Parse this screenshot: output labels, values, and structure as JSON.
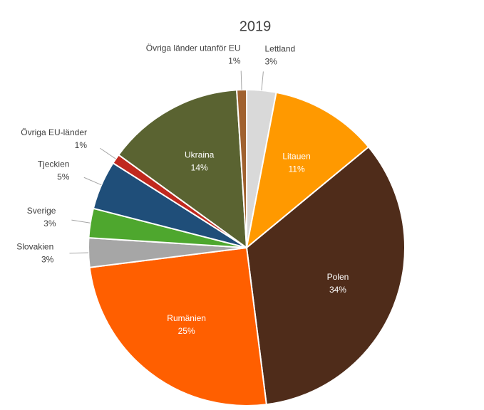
{
  "chart_data": {
    "type": "pie",
    "title": "2019",
    "categories": [
      "Lettland",
      "Litauen",
      "Polen",
      "Rumänien",
      "Slovakien",
      "Sverige",
      "Tjeckien",
      "Övriga EU-länder",
      "Ukraina",
      "Övriga länder utanför EU"
    ],
    "values": [
      3,
      11,
      34,
      25,
      3,
      3,
      5,
      1,
      14,
      1
    ],
    "value_labels": [
      "3%",
      "11%",
      "34%",
      "25%",
      "3%",
      "3%",
      "5%",
      "1%",
      "14%",
      "1%"
    ],
    "colors": [
      "#d9d9d9",
      "#ff9900",
      "#4f2c1a",
      "#ff5f00",
      "#a6a6a6",
      "#4ea72e",
      "#1f4e79",
      "#c0281e",
      "#5a6331",
      "#a0612f"
    ]
  }
}
